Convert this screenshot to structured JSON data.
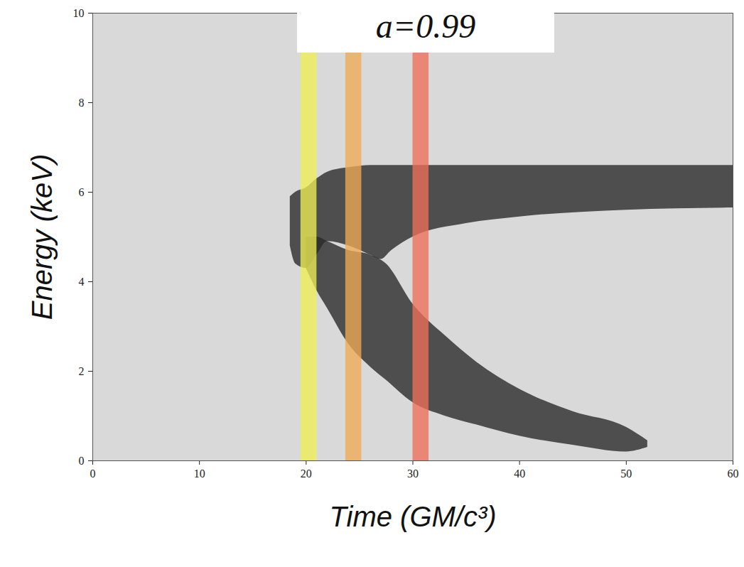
{
  "chart_data": {
    "type": "area",
    "title": "a=0.99",
    "x_label": "Time (GM/c³)",
    "y_label": "Energy (keV)",
    "xlim": [
      0,
      60
    ],
    "xticks": [
      0,
      10,
      20,
      30,
      40,
      50,
      60
    ],
    "ylim": [
      0,
      10
    ],
    "yticks": [
      0,
      2,
      4,
      6,
      8,
      10
    ],
    "color": "#2b2b2b",
    "series": [
      {
        "x": [
          18.5,
          19,
          20,
          21,
          22,
          24,
          26,
          27,
          28,
          30,
          35,
          40,
          50,
          60
        ],
        "low": [
          4.8,
          4.4,
          4.3,
          4.6,
          4.9,
          4.8,
          4.6,
          4.5,
          4.7,
          5.0,
          5.3,
          5.45,
          5.6,
          5.65
        ],
        "high": [
          5.9,
          6.0,
          6.1,
          6.3,
          6.45,
          6.55,
          6.6,
          6.6,
          6.6,
          6.6,
          6.6,
          6.6,
          6.6,
          6.6
        ]
      },
      {
        "x": [
          20,
          21,
          22,
          24,
          26,
          27.5,
          30,
          33,
          36,
          40,
          45,
          50,
          52
        ],
        "low": [
          4.3,
          3.8,
          3.4,
          2.6,
          2.1,
          1.8,
          1.3,
          1.0,
          0.8,
          0.55,
          0.35,
          0.2,
          0.3
        ],
        "high": [
          5.0,
          5.0,
          4.9,
          4.7,
          4.6,
          4.4,
          3.5,
          2.8,
          2.2,
          1.6,
          1.1,
          0.75,
          0.45
        ]
      }
    ],
    "bands": [
      {
        "x0": 19.5,
        "x1": 21,
        "color": "#eeee55"
      },
      {
        "x0": 23.7,
        "x1": 25.2,
        "color": "#eeaa55"
      },
      {
        "x0": 30.0,
        "x1": 31.5,
        "color": "#ee6e5a"
      }
    ]
  }
}
